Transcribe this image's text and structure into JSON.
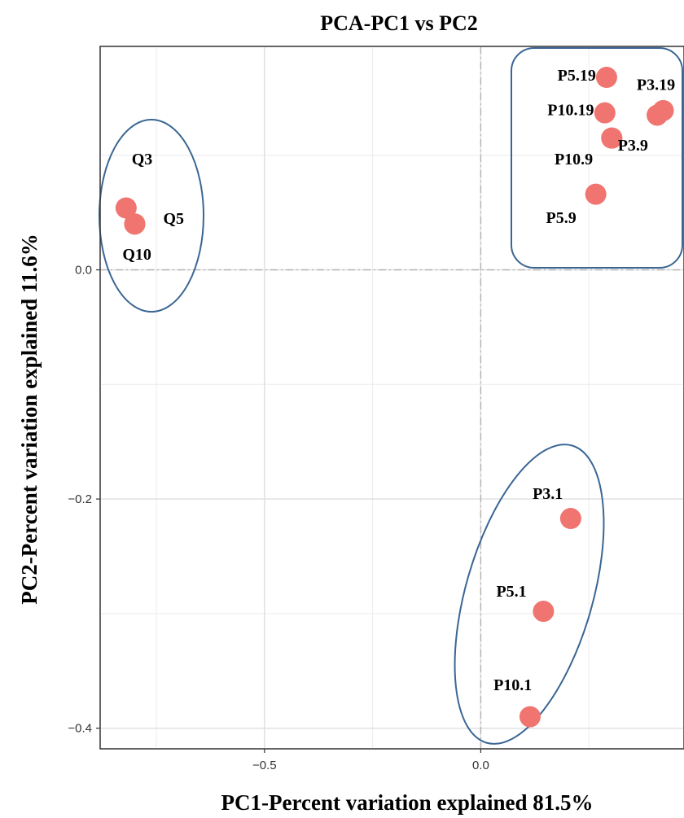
{
  "chart_data": {
    "type": "scatter",
    "title": "PCA-PC1 vs PC2",
    "xlabel": "PC1-Percent variation explained 81.5%",
    "ylabel": "PC2-Percent variation explained 11.6%",
    "xlim": [
      -0.88,
      0.47
    ],
    "ylim": [
      -0.418,
      0.195
    ],
    "xticks": [
      {
        "value": -0.5,
        "label": "−0.5"
      },
      {
        "value": 0.0,
        "label": "0.0"
      }
    ],
    "yticks": [
      {
        "value": 0.0,
        "label": "0.0"
      },
      {
        "value": -0.2,
        "label": "−0.2"
      },
      {
        "value": -0.4,
        "label": "−0.4"
      }
    ],
    "xgrid_minor": [
      -0.75,
      -0.25,
      0.25
    ],
    "ygrid_minor": [
      0.1,
      -0.1,
      -0.3
    ],
    "grid": true,
    "reference_lines": {
      "x": 0.0,
      "y": 0.0
    },
    "marker_color": "#f07470",
    "group_outline_color": "#3a6694",
    "points": [
      {
        "label": "Q3",
        "x": -0.82,
        "y": 0.054
      },
      {
        "label": "Q5",
        "x": -0.8,
        "y": 0.04
      },
      {
        "label": "Q10",
        "x": -0.8,
        "y": 0.04
      },
      {
        "label": "P5.19",
        "x": 0.291,
        "y": 0.168
      },
      {
        "label": "P10.19",
        "x": 0.287,
        "y": 0.137
      },
      {
        "label": "P3.19",
        "x": 0.408,
        "y": 0.135
      },
      {
        "label": "P3.19",
        "x": 0.422,
        "y": 0.139
      },
      {
        "label": "P3.9",
        "x": 0.303,
        "y": 0.115
      },
      {
        "label": "P10.9",
        "x": 0.303,
        "y": 0.115
      },
      {
        "label": "P5.9",
        "x": 0.266,
        "y": 0.066
      },
      {
        "label": "P3.1",
        "x": 0.208,
        "y": -0.217
      },
      {
        "label": "P5.1",
        "x": 0.145,
        "y": -0.298
      },
      {
        "label": "P10.1",
        "x": 0.114,
        "y": -0.39
      }
    ],
    "labels": [
      {
        "text": "Q3",
        "x": -0.783,
        "y": 0.092
      },
      {
        "text": "Q5",
        "x": -0.71,
        "y": 0.04
      },
      {
        "text": "Q10",
        "x": -0.795,
        "y": 0.009
      },
      {
        "text": "P5.19",
        "x": 0.222,
        "y": 0.165
      },
      {
        "text": "P3.19",
        "x": 0.405,
        "y": 0.157
      },
      {
        "text": "P10.19",
        "x": 0.208,
        "y": 0.135
      },
      {
        "text": "P3.9",
        "x": 0.352,
        "y": 0.104
      },
      {
        "text": "P10.9",
        "x": 0.215,
        "y": 0.092
      },
      {
        "text": "P5.9",
        "x": 0.186,
        "y": 0.041
      },
      {
        "text": "P3.1",
        "x": 0.155,
        "y": -0.2
      },
      {
        "text": "P5.1",
        "x": 0.071,
        "y": -0.285
      },
      {
        "text": "P10.1",
        "x": 0.074,
        "y": -0.367
      }
    ],
    "groups": [
      {
        "shape": "ellipse",
        "cx": -0.767,
        "cy": 0.048,
        "rx": 0.119,
        "ry": 0.084,
        "rotation": 0
      },
      {
        "shape": "rect",
        "x0": 0.14,
        "x1": 0.47,
        "y0": 0.002,
        "y1": 0.193
      },
      {
        "shape": "ellipse",
        "cx": 0.135,
        "cy": -0.27,
        "rx": 0.13,
        "ry": 0.215,
        "rotation": 0
      },
      {
        "shape": "tilted-ellipse",
        "cx": 0.137,
        "cy": -0.274
      }
    ]
  }
}
